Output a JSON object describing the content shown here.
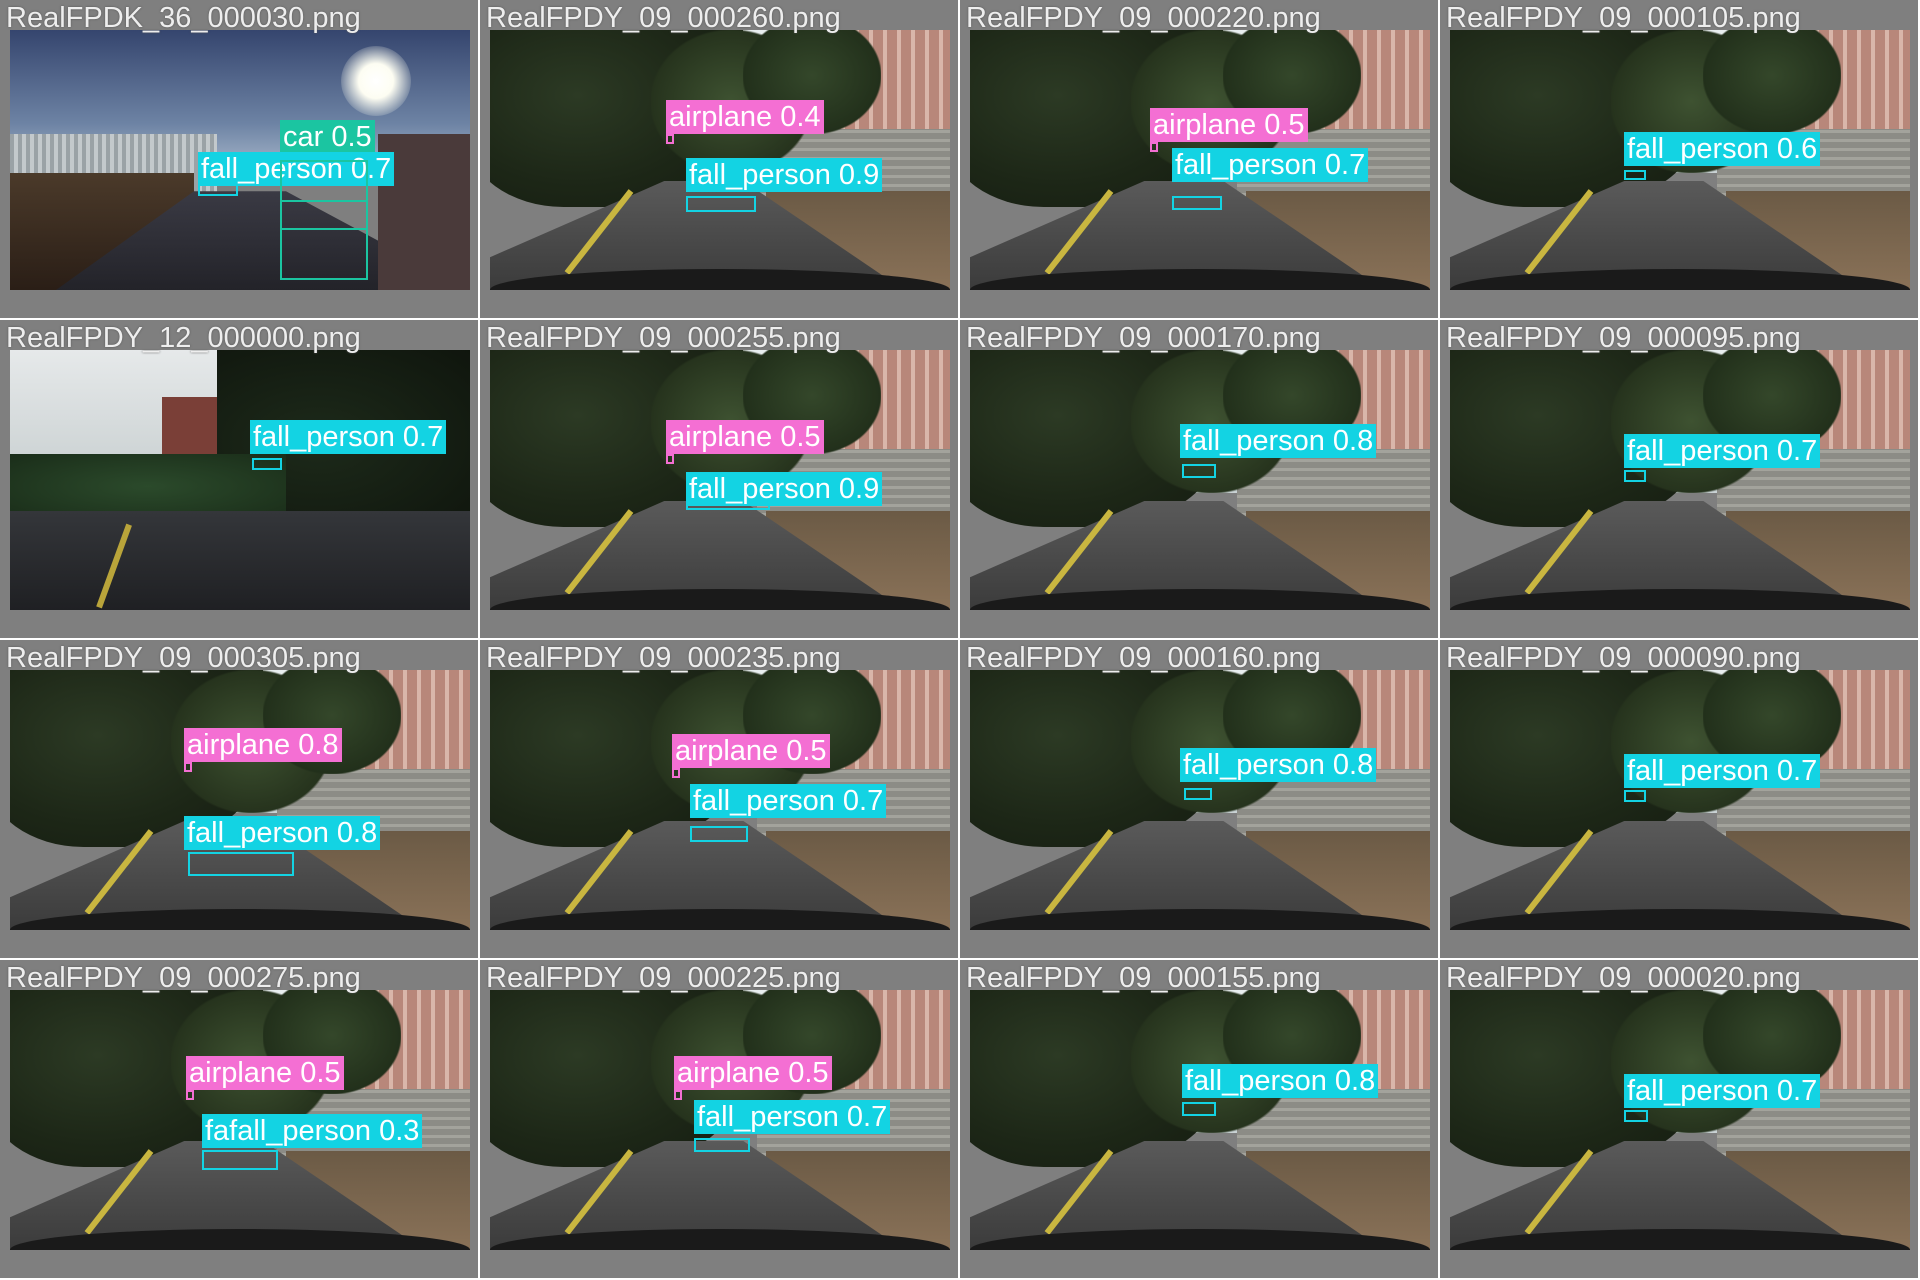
{
  "colors": {
    "fall_person": "#13d3e3",
    "airplane": "#f46fd3",
    "car": "#1bc5a1",
    "tile_bg": "#7f7f7f"
  },
  "tiles": [
    {
      "filename": "RealFPDK_36_000030.png",
      "scene": "dusk",
      "detections": [
        {
          "cls": "car",
          "text": "car 0.5"
        },
        {
          "cls": "fall_person",
          "text": "fall_person 0.7"
        }
      ]
    },
    {
      "filename": "RealFPDY_09_000260.png",
      "scene": "street",
      "detections": [
        {
          "cls": "airplane",
          "text": "airplane 0.4"
        },
        {
          "cls": "fall_person",
          "text": "fall_person 0.9"
        }
      ]
    },
    {
      "filename": "RealFPDY_09_000220.png",
      "scene": "street",
      "detections": [
        {
          "cls": "airplane",
          "text": "airplane 0.5"
        },
        {
          "cls": "fall_person",
          "text": "fall_person 0.7"
        }
      ]
    },
    {
      "filename": "RealFPDY_09_000105.png",
      "scene": "street",
      "detections": [
        {
          "cls": "fall_person",
          "text": "fall_person 0.6"
        }
      ]
    },
    {
      "filename": "RealFPDY_12_000000.png",
      "scene": "dark",
      "detections": [
        {
          "cls": "fall_person",
          "text": "fall_person 0.7"
        }
      ]
    },
    {
      "filename": "RealFPDY_09_000255.png",
      "scene": "street",
      "detections": [
        {
          "cls": "airplane",
          "text": "airplane 0.5"
        },
        {
          "cls": "fall_person",
          "text": "fall_person 0.9"
        }
      ]
    },
    {
      "filename": "RealFPDY_09_000170.png",
      "scene": "street",
      "detections": [
        {
          "cls": "fall_person",
          "text": "fall_person 0.8"
        }
      ]
    },
    {
      "filename": "RealFPDY_09_000095.png",
      "scene": "street",
      "detections": [
        {
          "cls": "fall_person",
          "text": "fall_person 0.7"
        }
      ]
    },
    {
      "filename": "RealFPDY_09_000305.png",
      "scene": "street",
      "detections": [
        {
          "cls": "airplane",
          "text": "airplane 0.8"
        },
        {
          "cls": "fall_person",
          "text": "fall_person 0.8"
        }
      ]
    },
    {
      "filename": "RealFPDY_09_000235.png",
      "scene": "street",
      "detections": [
        {
          "cls": "airplane",
          "text": "airplane 0.5"
        },
        {
          "cls": "fall_person",
          "text": "fall_person 0.7"
        }
      ]
    },
    {
      "filename": "RealFPDY_09_000160.png",
      "scene": "street",
      "detections": [
        {
          "cls": "fall_person",
          "text": "fall_person 0.8"
        }
      ]
    },
    {
      "filename": "RealFPDY_09_000090.png",
      "scene": "street",
      "detections": [
        {
          "cls": "fall_person",
          "text": "fall_person 0.7"
        }
      ]
    },
    {
      "filename": "RealFPDY_09_000275.png",
      "scene": "street",
      "detections": [
        {
          "cls": "airplane",
          "text": "airplane 0.5"
        },
        {
          "cls": "fall_person",
          "text": "fafall_person 0.3"
        }
      ]
    },
    {
      "filename": "RealFPDY_09_000225.png",
      "scene": "street",
      "detections": [
        {
          "cls": "airplane",
          "text": "airplane 0.5"
        },
        {
          "cls": "fall_person",
          "text": "fall_person 0.7"
        }
      ]
    },
    {
      "filename": "RealFPDY_09_000155.png",
      "scene": "street",
      "detections": [
        {
          "cls": "fall_person",
          "text": "fall_person 0.8"
        }
      ]
    },
    {
      "filename": "RealFPDY_09_000020.png",
      "scene": "street",
      "detections": [
        {
          "cls": "fall_person",
          "text": "fall_person 0.7"
        }
      ]
    }
  ]
}
